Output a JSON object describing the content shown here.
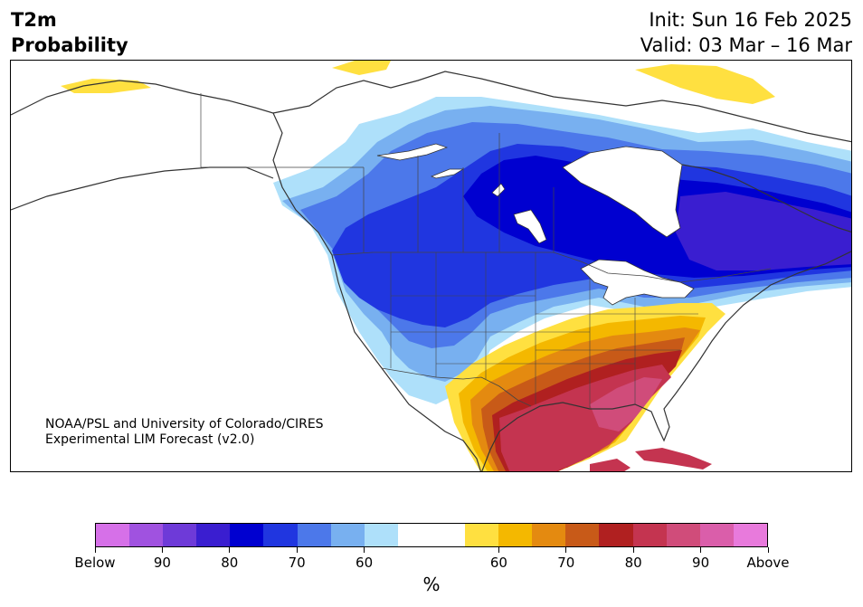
{
  "title": {
    "line1": "T2m",
    "line2": "Probability"
  },
  "header_right": {
    "init": "Init: Sun 16 Feb 2025",
    "valid": "Valid: 03 Mar – 16 Mar"
  },
  "credit": {
    "line1": "NOAA/PSL and University of Colorado/CIRES",
    "line2": "Experimental LIM Forecast (v2.0)"
  },
  "colorbar": {
    "colors": [
      "#d670e8",
      "#a052e0",
      "#6e3ad8",
      "#3a1ed0",
      "#0000d0",
      "#2036e0",
      "#4c78ea",
      "#78b0f0",
      "#aee0fa",
      "#ffffff",
      "#ffffff",
      "#ffe040",
      "#f4b800",
      "#e48a10",
      "#c85a18",
      "#b02020",
      "#c43450",
      "#d04c7a",
      "#da5eaa",
      "#e87adc"
    ],
    "labels": [
      "Below",
      "90",
      "80",
      "70",
      "60",
      "60",
      "70",
      "80",
      "90",
      "Above"
    ],
    "unit": "%"
  },
  "map_colors": {
    "below_light": "#aee0fa",
    "below_mid": "#78b0f0",
    "below_strong": "#4c78ea",
    "below_deep": "#2036e0",
    "below_max": "#0000d0",
    "below_violet": "#3a1ed0",
    "above_yellow": "#ffe040",
    "above_gold": "#f4b800",
    "above_orange": "#e48a10",
    "above_burnt": "#c85a18",
    "above_red": "#b02020",
    "above_crimson": "#c43450",
    "above_pink": "#d04c7a"
  }
}
